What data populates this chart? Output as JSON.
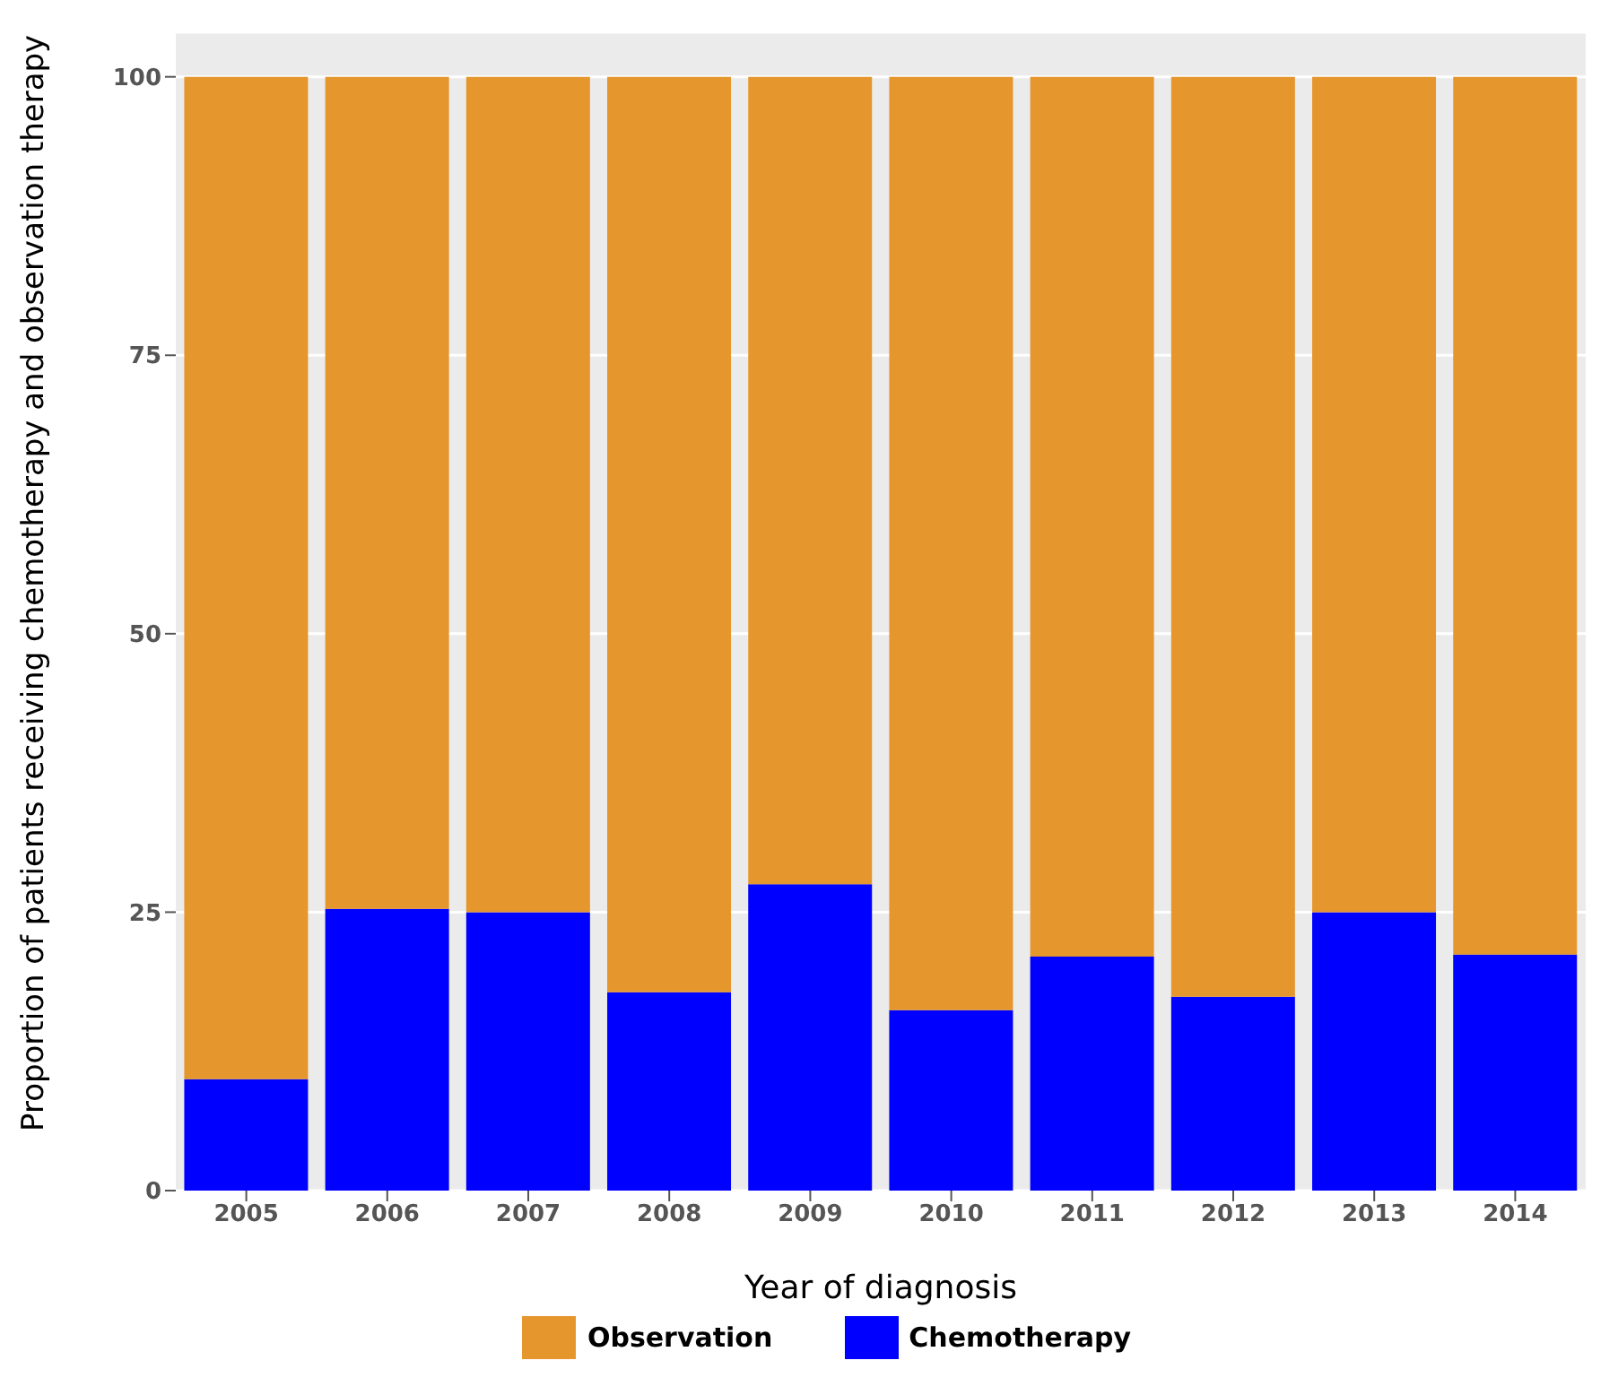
{
  "chart_data": {
    "type": "bar",
    "stacked": true,
    "xlabel": "Year of diagnosis",
    "ylabel": "Proportion of patients receiving chemotherapy and observation therapy",
    "categories": [
      "2005",
      "2006",
      "2007",
      "2008",
      "2009",
      "2010",
      "2011",
      "2012",
      "2013",
      "2014"
    ],
    "series": [
      {
        "name": "Chemotherapy",
        "color": "#0000ff",
        "values": [
          10,
          25.3,
          25,
          17.8,
          27.5,
          16.2,
          21,
          17.4,
          25,
          21.2
        ]
      },
      {
        "name": "Observation",
        "color": "#e5962d",
        "values": [
          90,
          74.7,
          75,
          82.2,
          72.5,
          83.8,
          79,
          82.6,
          75,
          78.8
        ]
      }
    ],
    "ylim": [
      0,
      104
    ],
    "yticks": [
      0,
      25,
      50,
      75,
      100
    ],
    "grid": "y",
    "legend": "bottom"
  }
}
